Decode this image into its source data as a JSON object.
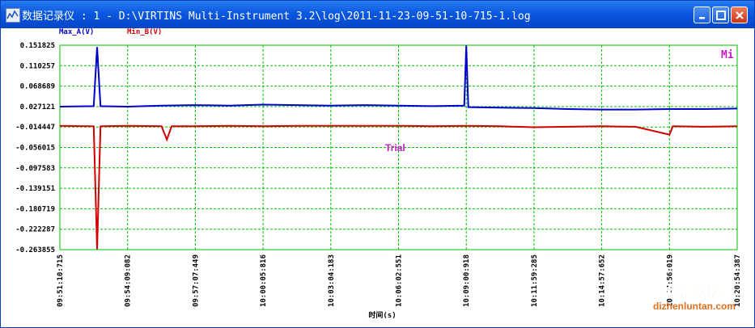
{
  "window": {
    "title": "数据记录仪 : 1 - D:\\VIRTINS Multi-Instrument 3.2\\log\\2011-11-23-09-51-10-715-1.log",
    "buttons": {
      "minimize": "minimize-icon",
      "maximize": "maximize-icon",
      "close": "close-icon"
    }
  },
  "overlay": {
    "trial_label": "Trial",
    "mi_mark": "Mi"
  },
  "colors": {
    "series_a": "#0000c8",
    "series_b": "#d00000",
    "grid": "#00c000",
    "trial": "#c020c0",
    "title_bg": "#0a58e0"
  },
  "chart_data": {
    "type": "line",
    "xlabel": "时间(s)",
    "ylabel": "",
    "x_tick_labels": [
      "09:51:10:715",
      "09:54:09:082",
      "09:57:07:449",
      "10:00:05:816",
      "10:03:04:183",
      "10:06:02:551",
      "10:09:00:918",
      "10:11:59:285",
      "10:14:57:652",
      "10:17:56:019",
      "10:20:54:387"
    ],
    "y_tick_labels": [
      "0.151825",
      "0.110257",
      "0.068689",
      "0.027121",
      "-0.014447",
      "-0.056015",
      "-0.097583",
      "-0.139151",
      "-0.180719",
      "-0.222287",
      "-0.263855"
    ],
    "ylim": [
      -0.263855,
      0.151825
    ],
    "grid": true,
    "series": [
      {
        "name": "Max_A(V)",
        "points": [
          [
            0.0,
            0.027
          ],
          [
            0.05,
            0.028
          ],
          [
            0.055,
            0.148
          ],
          [
            0.06,
            0.028
          ],
          [
            0.1,
            0.027
          ],
          [
            0.15,
            0.029
          ],
          [
            0.2,
            0.03
          ],
          [
            0.25,
            0.029
          ],
          [
            0.3,
            0.031
          ],
          [
            0.35,
            0.03
          ],
          [
            0.4,
            0.029
          ],
          [
            0.45,
            0.03
          ],
          [
            0.5,
            0.029
          ],
          [
            0.55,
            0.028
          ],
          [
            0.597,
            0.029
          ],
          [
            0.6,
            0.151
          ],
          [
            0.603,
            0.026
          ],
          [
            0.65,
            0.025
          ],
          [
            0.7,
            0.024
          ],
          [
            0.75,
            0.022
          ],
          [
            0.8,
            0.021
          ],
          [
            0.85,
            0.021
          ],
          [
            0.9,
            0.022
          ],
          [
            0.95,
            0.022
          ],
          [
            1.0,
            0.023
          ]
        ]
      },
      {
        "name": "Min_B(V)",
        "points": [
          [
            0.0,
            -0.012
          ],
          [
            0.05,
            -0.013
          ],
          [
            0.055,
            -0.263
          ],
          [
            0.06,
            -0.013
          ],
          [
            0.1,
            -0.012
          ],
          [
            0.15,
            -0.013
          ],
          [
            0.158,
            -0.04
          ],
          [
            0.165,
            -0.013
          ],
          [
            0.2,
            -0.013
          ],
          [
            0.25,
            -0.012
          ],
          [
            0.3,
            -0.013
          ],
          [
            0.35,
            -0.012
          ],
          [
            0.4,
            -0.012
          ],
          [
            0.45,
            -0.012
          ],
          [
            0.5,
            -0.012
          ],
          [
            0.55,
            -0.013
          ],
          [
            0.6,
            -0.012
          ],
          [
            0.65,
            -0.013
          ],
          [
            0.7,
            -0.015
          ],
          [
            0.75,
            -0.014
          ],
          [
            0.8,
            -0.013
          ],
          [
            0.85,
            -0.014
          ],
          [
            0.9,
            -0.03
          ],
          [
            0.905,
            -0.013
          ],
          [
            0.95,
            -0.014
          ],
          [
            1.0,
            -0.013
          ]
        ]
      }
    ]
  },
  "watermark": {
    "cn": "地震论坛",
    "url": "dizhenluntan.com"
  }
}
